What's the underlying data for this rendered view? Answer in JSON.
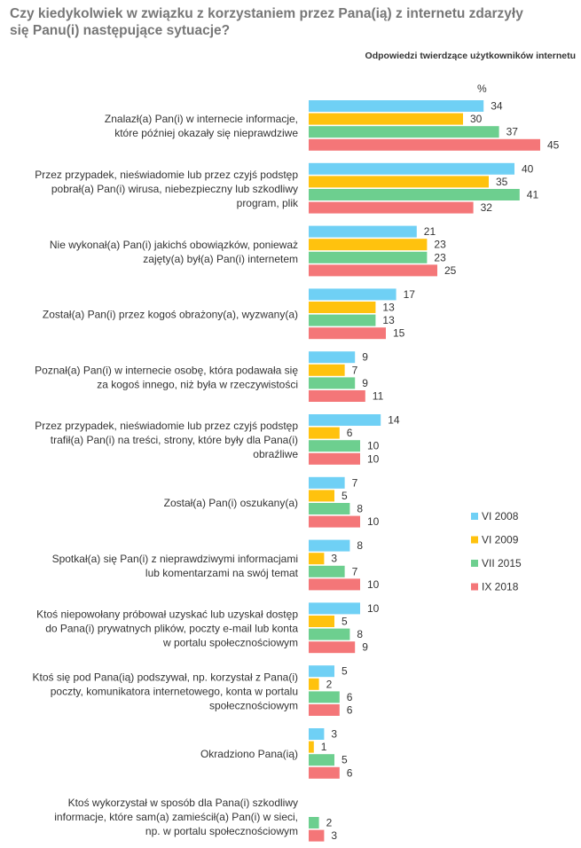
{
  "chart_data": {
    "type": "bar",
    "orientation": "horizontal",
    "title": "Czy kiedykolwiek w związku z korzystaniem przez Pana(ią) z internetu zdarzyły się Panu(i) następujące sytuacje?",
    "subtitle": "Odpowiedzi twierdzące użytkowników internetu",
    "unit": "%",
    "categories": [
      [
        "Znalazł(a) Pan(i) w internecie informacje,",
        "które później okazały się nieprawdziwe"
      ],
      [
        "Przez przypadek, nieświadomie lub przez czyjś podstęp",
        "pobrał(a) Pan(i) wirusa, niebezpieczny lub szkodliwy",
        "program, plik"
      ],
      [
        "Nie wykonał(a) Pan(i) jakichś obowiązków, ponieważ",
        "zajęty(a) był(a) Pan(i) internetem"
      ],
      [
        "Został(a) Pan(i) przez kogoś obrażony(a), wyzwany(a)"
      ],
      [
        "Poznał(a) Pan(i) w internecie osobę, która podawała się",
        "za kogoś innego, niż była w rzeczywistości"
      ],
      [
        "Przez przypadek, nieświadomie lub przez czyjś podstęp",
        "trafił(a) Pan(i) na treści, strony, które były dla Pana(i)",
        "obraźliwe"
      ],
      [
        "Został(a) Pan(i) oszukany(a)"
      ],
      [
        "Spotkał(a) się Pan(i) z nieprawdziwymi informacjami",
        "lub komentarzami na swój temat"
      ],
      [
        "Ktoś niepowołany próbował uzyskać lub uzyskał dostęp",
        "do Pana(i) prywatnych plików, poczty e-mail lub konta",
        "w portalu społecznościowym"
      ],
      [
        "Ktoś się pod Pana(ią) podszywał, np. korzystał z Pana(i)",
        "poczty, komunikatora internetowego, konta w portalu",
        "społecznościowym"
      ],
      [
        "Okradziono Pana(ią)"
      ],
      [
        "Ktoś wykorzystał w sposób dla Pana(i) szkodliwy",
        "informacje, które sam(a) zamieścił(a) Pan(i) w sieci,",
        "np. w portalu społecznościowym"
      ]
    ],
    "series": [
      {
        "name": "VI 2008",
        "color": "#6fd0f5",
        "values": [
          34,
          40,
          21,
          17,
          9,
          14,
          7,
          8,
          10,
          5,
          3,
          null
        ]
      },
      {
        "name": "VI 2009",
        "color": "#ffc20e",
        "values": [
          30,
          35,
          23,
          13,
          7,
          6,
          5,
          3,
          5,
          2,
          1,
          null
        ]
      },
      {
        "name": "VII 2015",
        "color": "#6dcf8f",
        "values": [
          37,
          41,
          23,
          13,
          9,
          10,
          8,
          7,
          8,
          6,
          5,
          2
        ]
      },
      {
        "name": "IX 2018",
        "color": "#f47678",
        "values": [
          45,
          32,
          25,
          15,
          11,
          10,
          10,
          10,
          9,
          6,
          6,
          3
        ]
      }
    ],
    "xlim": [
      0,
      50
    ],
    "legend": "right"
  }
}
